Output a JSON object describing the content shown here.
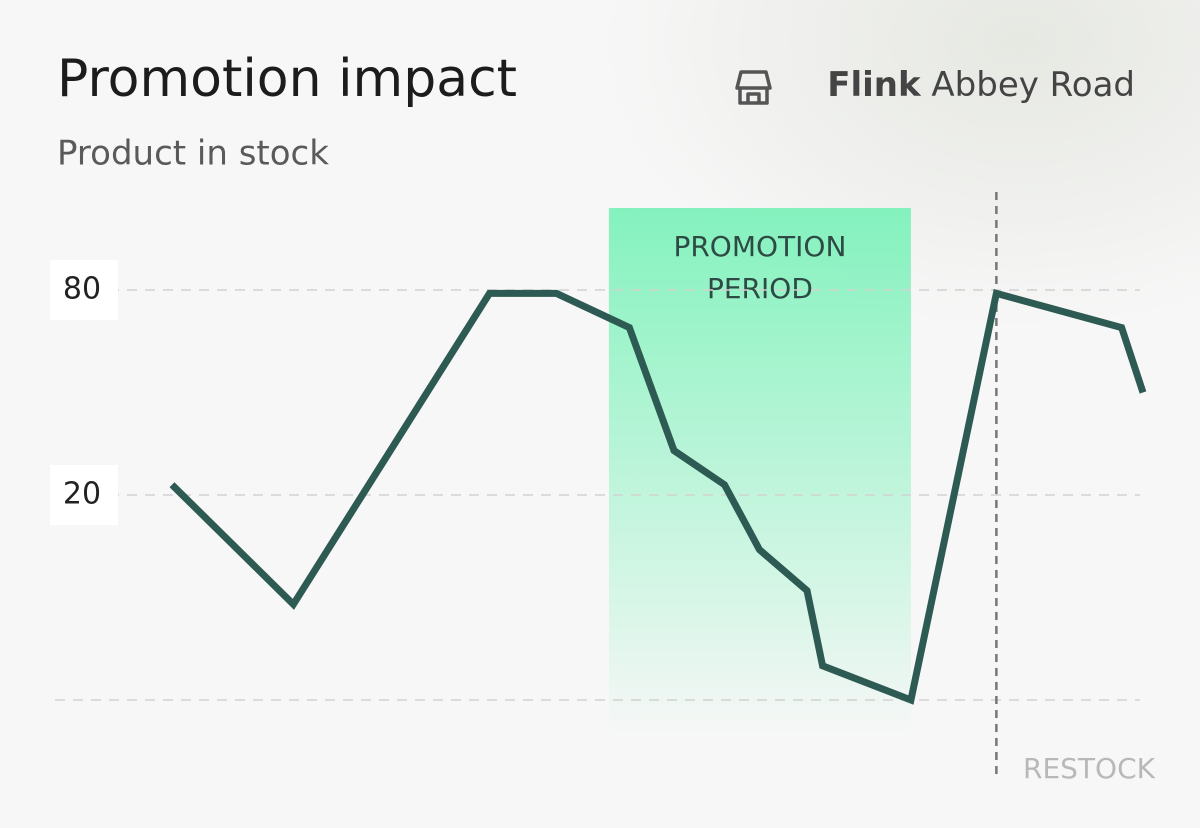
{
  "chart_data": {
    "type": "line",
    "title": "Promotion impact",
    "subtitle": "Product in stock",
    "store": {
      "brand": "Flink",
      "location": "Abbey Road"
    },
    "x": [
      0,
      12.5,
      32.7,
      39.6,
      47.1,
      51.7,
      56.9,
      60.5,
      65.4,
      67,
      76.1,
      84.9,
      97.8,
      100
    ],
    "values": [
      23,
      -12,
      79,
      79,
      69,
      33,
      23,
      4,
      -8,
      -30,
      -40,
      79,
      69,
      50
    ],
    "color": "#2d5a52",
    "xlim": [
      0,
      100
    ],
    "ylim": [
      -60,
      110
    ],
    "yticks": [
      20,
      80
    ],
    "grid_lines": [
      -40,
      20,
      80
    ],
    "promotion": {
      "label_lines": [
        "PROMOTION",
        "PERIOD"
      ],
      "x": [
        45,
        76.1
      ],
      "color": "#7ef2bb"
    },
    "restock": {
      "label": "RESTOCK",
      "x": 84.9
    }
  }
}
